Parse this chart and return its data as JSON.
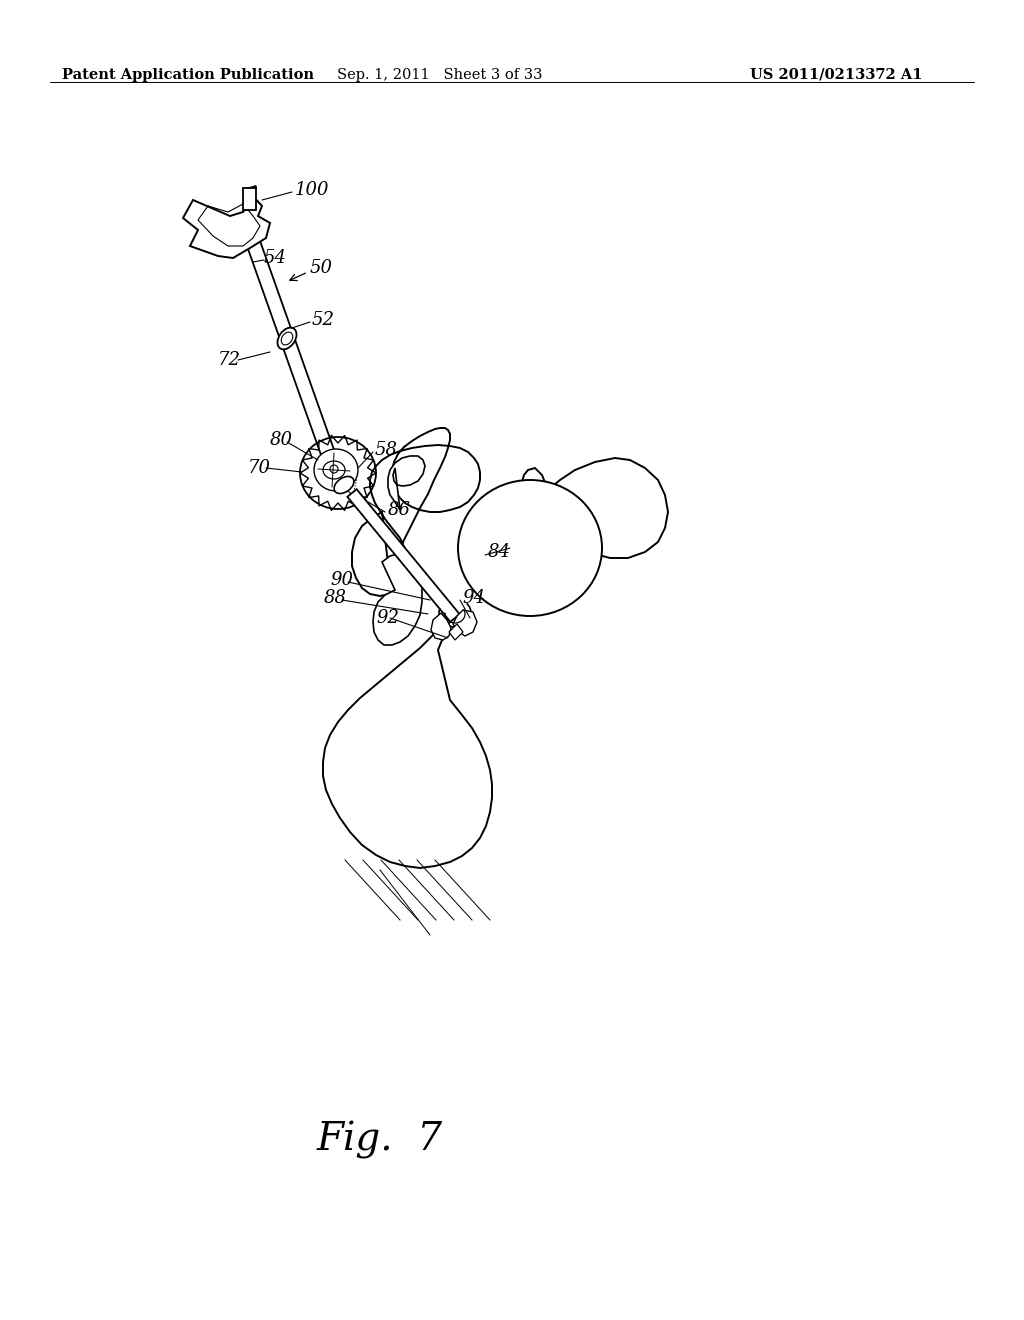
{
  "background_color": "#ffffff",
  "header_left": "Patent Application Publication",
  "header_mid": "Sep. 1, 2011   Sheet 3 of 33",
  "header_right": "US 2011/0213372 A1",
  "fig_label": "Fig.  7",
  "header_fontsize": 10.5,
  "fig_label_fontsize": 28,
  "line_color": "#000000",
  "line_width": 1.3
}
